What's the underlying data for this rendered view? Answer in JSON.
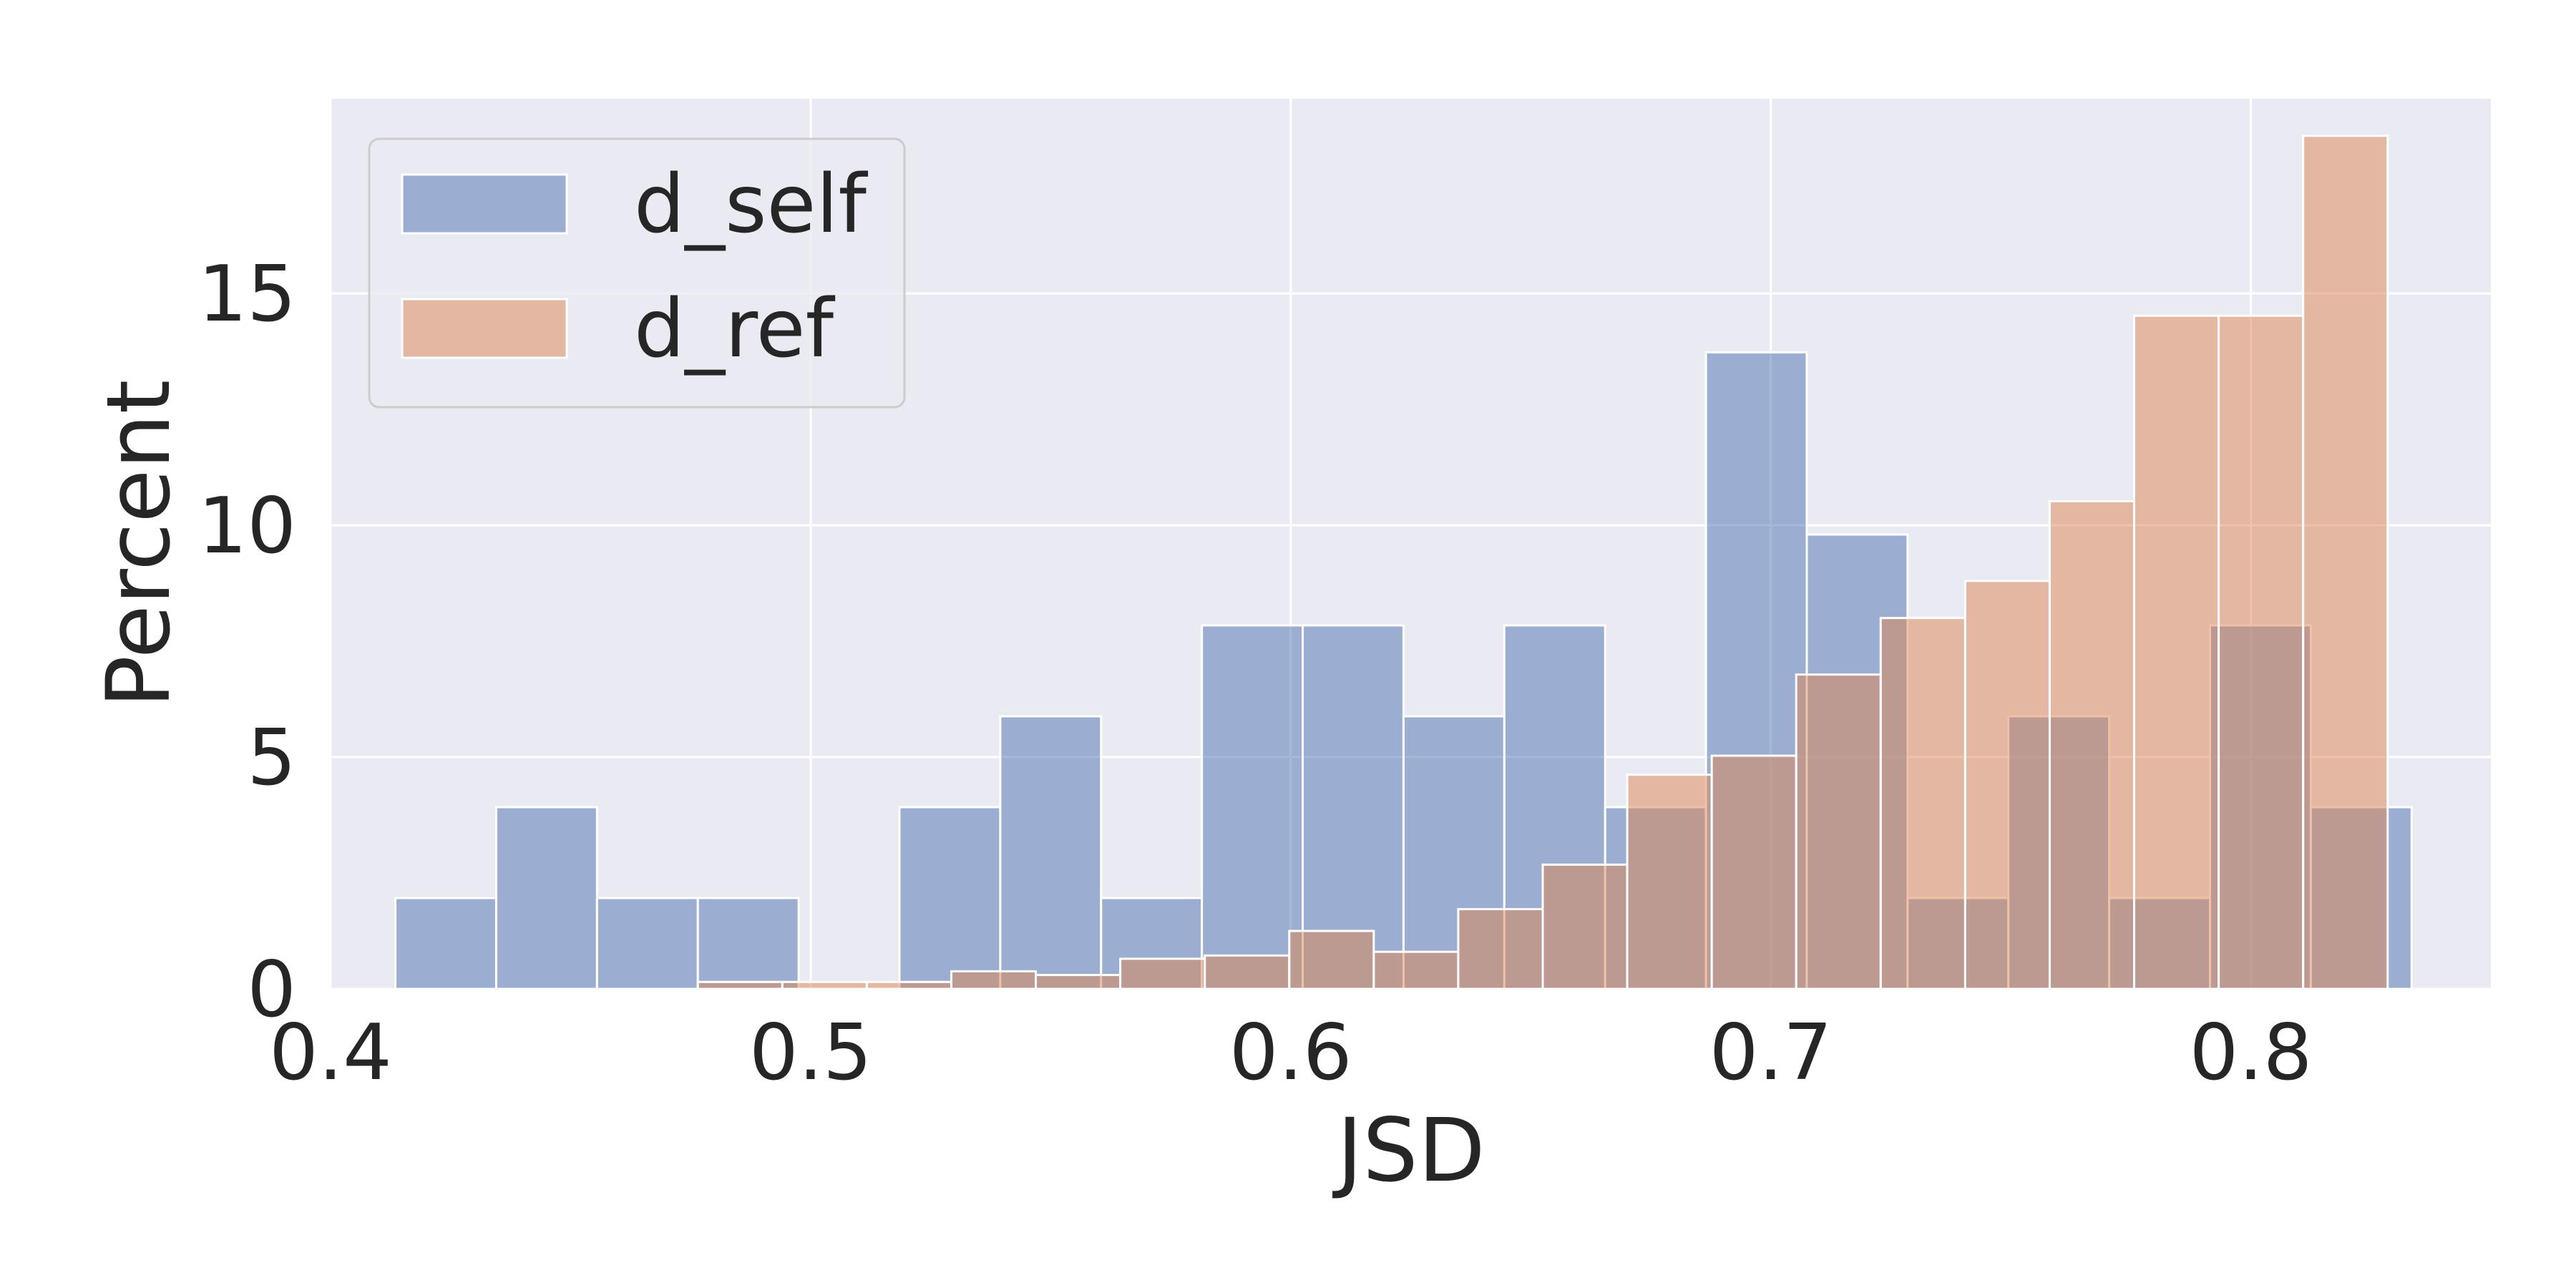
{
  "chart_data": {
    "type": "bar",
    "subtype": "overlapping-histogram",
    "xlabel": "JSD",
    "ylabel": "Percent",
    "xlim": [
      0.4,
      0.85
    ],
    "ylim": [
      0,
      19.2
    ],
    "xticks": [
      "0.4",
      "0.5",
      "0.6",
      "0.7",
      "0.8"
    ],
    "yticks": [
      "0",
      "5",
      "10",
      "15"
    ],
    "grid": true,
    "legend_position": "top-left",
    "series": [
      {
        "name": "d_self",
        "color": "#4c72b0",
        "bins": [
          {
            "x0": 0.4135,
            "x1": 0.4345,
            "value": 1.96
          },
          {
            "x0": 0.4345,
            "x1": 0.4555,
            "value": 3.92
          },
          {
            "x0": 0.4555,
            "x1": 0.4765,
            "value": 1.96
          },
          {
            "x0": 0.4765,
            "x1": 0.4975,
            "value": 1.96
          },
          {
            "x0": 0.4975,
            "x1": 0.5185,
            "value": 0
          },
          {
            "x0": 0.5185,
            "x1": 0.5395,
            "value": 3.92
          },
          {
            "x0": 0.5395,
            "x1": 0.5605,
            "value": 5.88
          },
          {
            "x0": 0.5605,
            "x1": 0.5815,
            "value": 1.96
          },
          {
            "x0": 0.5815,
            "x1": 0.6025,
            "value": 7.84
          },
          {
            "x0": 0.6025,
            "x1": 0.6235,
            "value": 7.84
          },
          {
            "x0": 0.6235,
            "x1": 0.6445,
            "value": 5.88
          },
          {
            "x0": 0.6445,
            "x1": 0.6655,
            "value": 7.84
          },
          {
            "x0": 0.6655,
            "x1": 0.6865,
            "value": 3.92
          },
          {
            "x0": 0.6865,
            "x1": 0.7075,
            "value": 13.73
          },
          {
            "x0": 0.7075,
            "x1": 0.7285,
            "value": 9.8
          },
          {
            "x0": 0.7285,
            "x1": 0.7495,
            "value": 1.96
          },
          {
            "x0": 0.7495,
            "x1": 0.7705,
            "value": 5.88
          },
          {
            "x0": 0.7705,
            "x1": 0.7915,
            "value": 1.96
          },
          {
            "x0": 0.7915,
            "x1": 0.8125,
            "value": 7.84
          },
          {
            "x0": 0.8125,
            "x1": 0.8335,
            "value": 3.92
          }
        ]
      },
      {
        "name": "d_ref",
        "color": "#dd8452",
        "bins": [
          {
            "x0": 0.4765,
            "x1": 0.4941,
            "value": 0.15
          },
          {
            "x0": 0.4941,
            "x1": 0.5117,
            "value": 0.15
          },
          {
            "x0": 0.5117,
            "x1": 0.5293,
            "value": 0.15
          },
          {
            "x0": 0.5293,
            "x1": 0.5469,
            "value": 0.38
          },
          {
            "x0": 0.5469,
            "x1": 0.5645,
            "value": 0.3
          },
          {
            "x0": 0.5645,
            "x1": 0.5821,
            "value": 0.65
          },
          {
            "x0": 0.5821,
            "x1": 0.5997,
            "value": 0.72
          },
          {
            "x0": 0.5997,
            "x1": 0.6173,
            "value": 1.25
          },
          {
            "x0": 0.6173,
            "x1": 0.6349,
            "value": 0.8
          },
          {
            "x0": 0.6349,
            "x1": 0.6525,
            "value": 1.72
          },
          {
            "x0": 0.6525,
            "x1": 0.6701,
            "value": 2.68
          },
          {
            "x0": 0.6701,
            "x1": 0.6877,
            "value": 4.62
          },
          {
            "x0": 0.6877,
            "x1": 0.7053,
            "value": 5.03
          },
          {
            "x0": 0.7053,
            "x1": 0.7229,
            "value": 6.78
          },
          {
            "x0": 0.7229,
            "x1": 0.7405,
            "value": 8.0
          },
          {
            "x0": 0.7405,
            "x1": 0.7581,
            "value": 8.8
          },
          {
            "x0": 0.7581,
            "x1": 0.7757,
            "value": 10.52
          },
          {
            "x0": 0.7757,
            "x1": 0.7933,
            "value": 14.52
          },
          {
            "x0": 0.7933,
            "x1": 0.8109,
            "value": 14.52
          },
          {
            "x0": 0.8109,
            "x1": 0.8285,
            "value": 18.4
          }
        ]
      }
    ]
  }
}
